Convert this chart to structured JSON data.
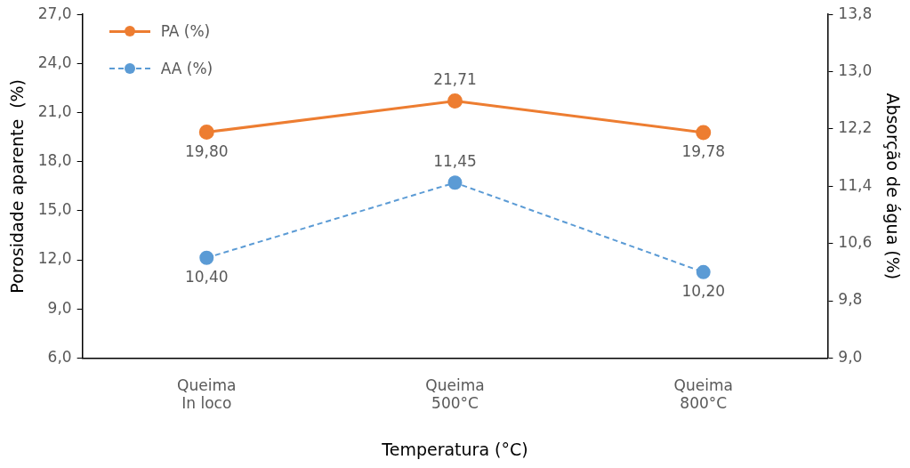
{
  "chart_data": {
    "type": "line",
    "xlabel": "Temperatura (°C)",
    "ylabel": "Porosidade aparente  (%)",
    "y2label": "Absorção de água (%)",
    "categories": [
      "Queima\nIn loco",
      "Queima\n500°C",
      "Queima\n800°C"
    ],
    "series": [
      {
        "name": "PA (%)",
        "color": "#ed7d31",
        "values": [
          19.8,
          21.71,
          19.78
        ],
        "value_labels": [
          "19,80",
          "21,71",
          "19,78"
        ],
        "line_style": "solid"
      },
      {
        "name": "AA (%)",
        "color": "#5b9bd5",
        "values": [
          10.4,
          11.45,
          10.2
        ],
        "value_labels": [
          "10,40",
          "11,45",
          "10,20"
        ],
        "line_style": "dashed",
        "axis": "y2"
      }
    ],
    "ylim": [
      6,
      27
    ],
    "yticks": [
      {
        "value": 6,
        "label": "6,0"
      },
      {
        "value": 9,
        "label": "9,0"
      },
      {
        "value": 12,
        "label": "12,0"
      },
      {
        "value": 15,
        "label": "15,0"
      },
      {
        "value": 18,
        "label": "18,0"
      },
      {
        "value": 21,
        "label": "21,0"
      },
      {
        "value": 24,
        "label": "24,0"
      },
      {
        "value": 27,
        "label": "27,0"
      }
    ],
    "y2lim": [
      9,
      13.8
    ],
    "y2ticks": [
      {
        "value": 9,
        "label": "9,0"
      },
      {
        "value": 9.8,
        "label": "9,8"
      },
      {
        "value": 10.6,
        "label": "10,6"
      },
      {
        "value": 11.4,
        "label": "11,4"
      },
      {
        "value": 12.2,
        "label": "12,2"
      },
      {
        "value": 13,
        "label": "13,0"
      },
      {
        "value": 13.8,
        "label": "13,8"
      }
    ],
    "marker": "circle",
    "grid": false,
    "legend": "top left"
  }
}
